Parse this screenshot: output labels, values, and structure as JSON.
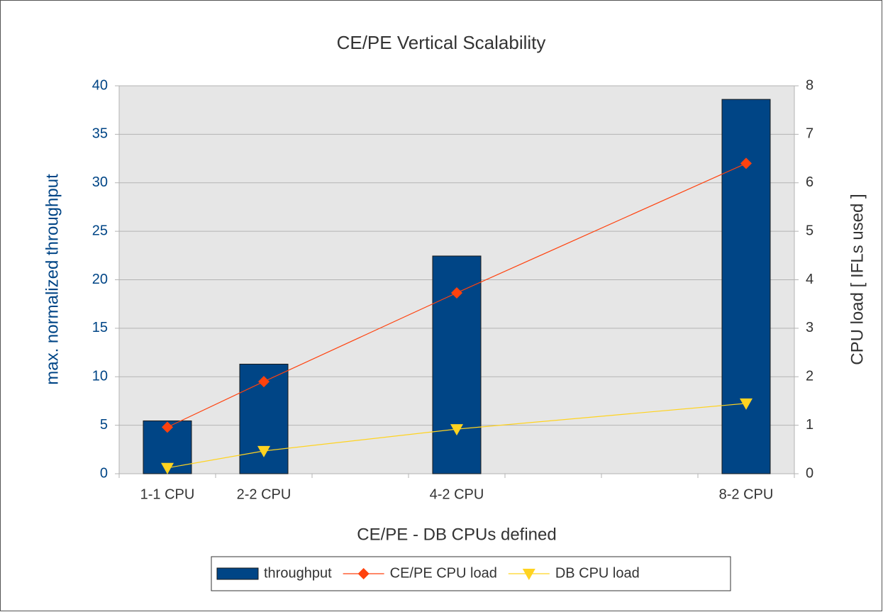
{
  "chart_data": {
    "type": "bar_line",
    "title": "CE/PE Vertical Scalability",
    "xlabel": "CE/PE - DB CPUs defined",
    "ylabel": "max. normalized throughput",
    "y2label": "CPU load [ IFLs used ]",
    "categories": [
      "1-1 CPU",
      "2-2 CPU",
      null,
      "4-2 CPU",
      null,
      null,
      "8-2 CPU"
    ],
    "series": [
      {
        "name": "throughput",
        "type": "bar",
        "color": "#004586",
        "values": [
          5.45,
          11.3,
          null,
          22.45,
          null,
          null,
          38.6
        ]
      },
      {
        "name": "CE/PE CPU load",
        "type": "line",
        "marker": "diamond",
        "axis": "y2",
        "color": "#ff420e",
        "values": [
          0.96,
          1.9,
          null,
          3.73,
          null,
          null,
          6.4
        ]
      },
      {
        "name": "DB CPU load",
        "type": "line",
        "marker": "triangle-down",
        "axis": "y2",
        "color": "#ffd320",
        "values": [
          0.12,
          0.47,
          null,
          0.92,
          null,
          null,
          1.45
        ]
      }
    ],
    "connect_nulls": true,
    "ylim": [
      0,
      40
    ],
    "yticks": [
      0,
      5,
      10,
      15,
      20,
      25,
      30,
      35,
      40
    ],
    "y2lim": [
      0,
      8
    ],
    "y2ticks": [
      0,
      1,
      2,
      3,
      4,
      5,
      6,
      7,
      8
    ],
    "grid": true,
    "legend": "bottom"
  }
}
